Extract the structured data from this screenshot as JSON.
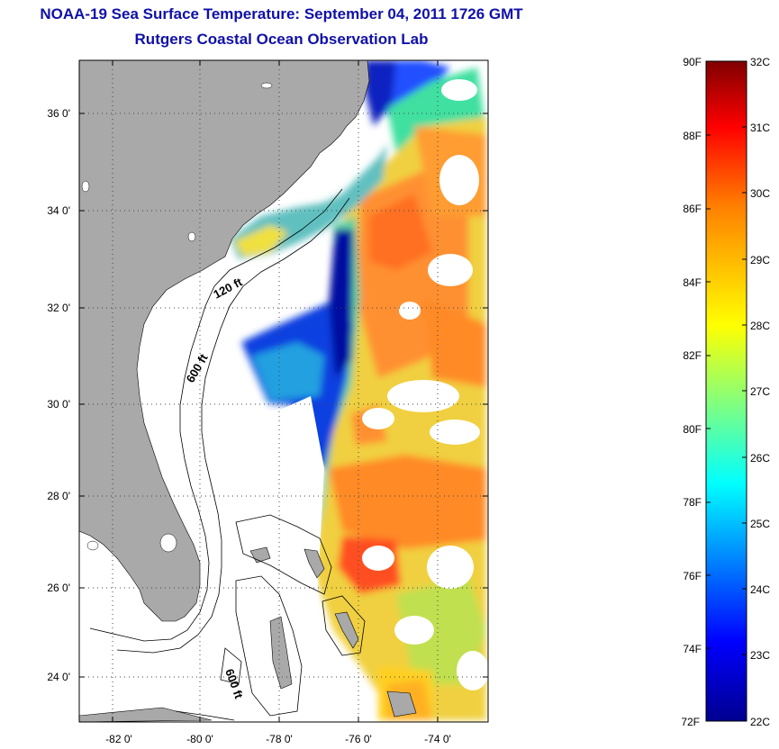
{
  "header": {
    "title": "NOAA-19 Sea Surface Temperature:  September 04, 2011 1726 GMT",
    "subtitle": "Rutgers Coastal Ocean Observation Lab"
  },
  "map": {
    "lat_ticks": [
      "36 0'",
      "34 0'",
      "32 0'",
      "30 0'",
      "28 0'",
      "26 0'",
      "24 0'"
    ],
    "lon_ticks": [
      "-82 0'",
      "-80 0'",
      "-78 0'",
      "-76 0'",
      "-74 0'"
    ],
    "contours": [
      "120 ft",
      "600 ft",
      "600 ft"
    ],
    "colors": {
      "land": "#a9a9a9",
      "water_nodata": "#ffffff",
      "grid": "#555555"
    }
  },
  "colorbar": {
    "f_labels": [
      "90F",
      "88F",
      "86F",
      "84F",
      "82F",
      "80F",
      "78F",
      "76F",
      "74F",
      "72F"
    ],
    "c_labels": [
      "32C",
      "31C",
      "30C",
      "29C",
      "28C",
      "27C",
      "26C",
      "25C",
      "24C",
      "23C",
      "22C"
    ],
    "colors": [
      "#00008f",
      "#0000ff",
      "#00ffff",
      "#80ff80",
      "#ffff00",
      "#ff8000",
      "#ff0000",
      "#800000"
    ]
  }
}
